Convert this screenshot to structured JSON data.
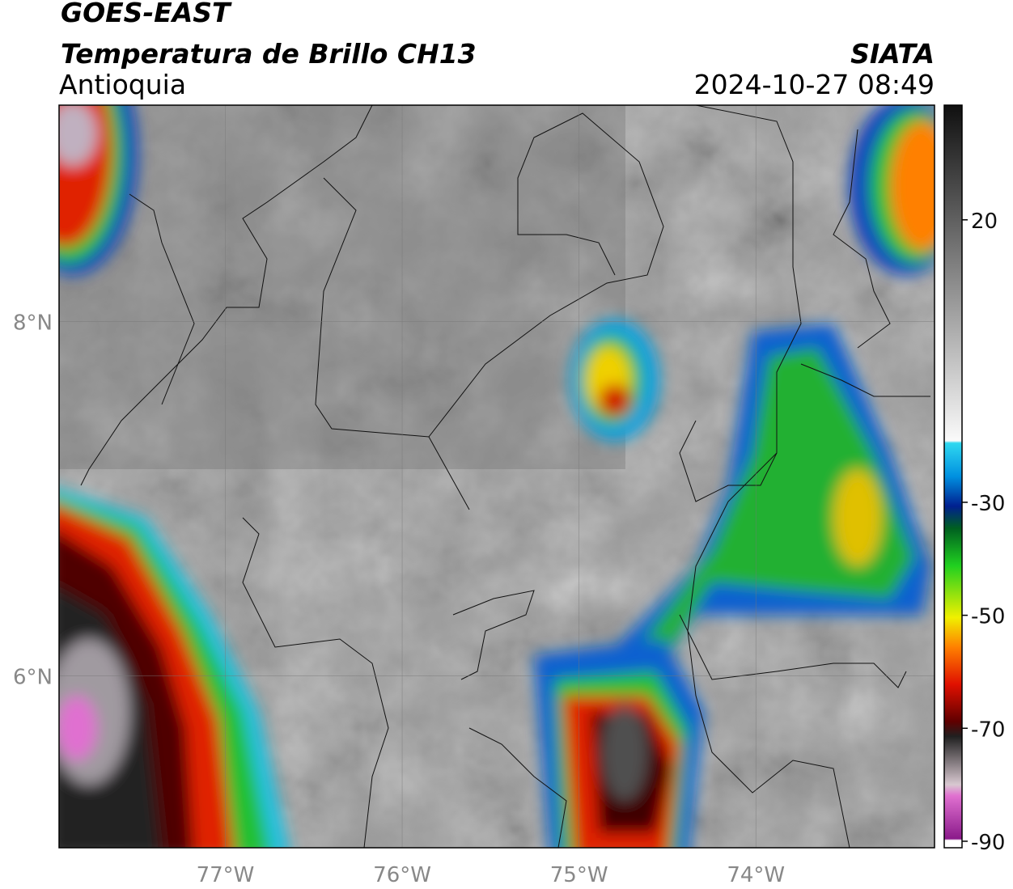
{
  "header": {
    "satellite": "GOES-EAST",
    "product": "Temperatura de Brillo CH13",
    "region": "Antioquia",
    "source": "SIATA",
    "datetime": "2024-10-27 08:49"
  },
  "map": {
    "lon_lim": [
      -77.94,
      -72.99
    ],
    "lat_lim": [
      5.03,
      9.22
    ],
    "lon_ticks": [
      {
        "value": -77,
        "label": "77°W"
      },
      {
        "value": -76,
        "label": "76°W"
      },
      {
        "value": -75,
        "label": "75°W"
      },
      {
        "value": -74,
        "label": "74°W"
      }
    ],
    "lat_ticks": [
      {
        "value": 8,
        "label": "8°N"
      },
      {
        "value": 6,
        "label": "6°N"
      }
    ]
  },
  "colorbar": {
    "lim": [
      -91.15,
      40.3
    ],
    "ticks": [
      20,
      -30,
      -50,
      -70,
      -90
    ]
  }
}
